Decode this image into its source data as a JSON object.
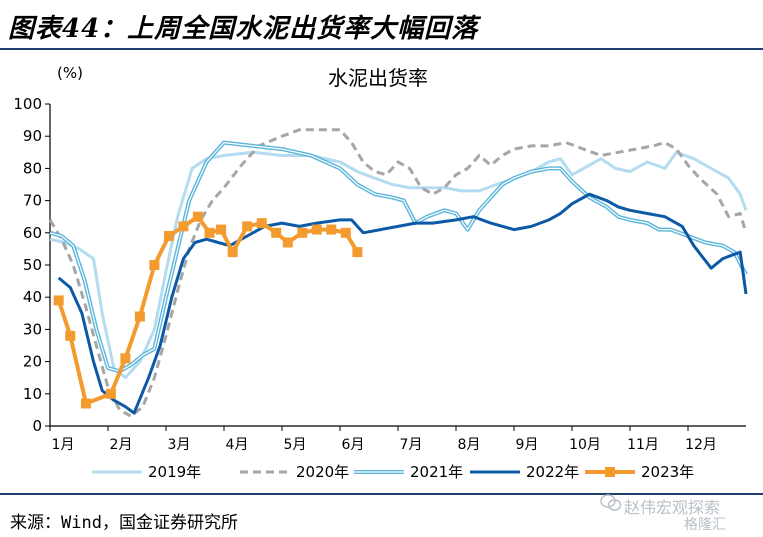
{
  "figure": {
    "title": "图表44：上周全国水泥出货率大幅回落",
    "source": "来源：Wind，国金证券研究所",
    "watermark": {
      "name": "赵伟宏观探索",
      "sub": "格隆汇",
      "icon": "wechat-icon"
    }
  },
  "chart_data": {
    "type": "line",
    "title": "水泥出货率",
    "ylabel": "(%)",
    "ylim": [
      0,
      100
    ],
    "yticks": [
      0,
      10,
      20,
      30,
      40,
      50,
      60,
      70,
      80,
      90,
      100
    ],
    "xlim": [
      1,
      13
    ],
    "xticks": [
      {
        "x": 1,
        "label": "1月"
      },
      {
        "x": 2,
        "label": "2月"
      },
      {
        "x": 3,
        "label": "3月"
      },
      {
        "x": 4,
        "label": "4月"
      },
      {
        "x": 5,
        "label": "5月"
      },
      {
        "x": 6,
        "label": "6月"
      },
      {
        "x": 7,
        "label": "7月"
      },
      {
        "x": 8,
        "label": "8月"
      },
      {
        "x": 9,
        "label": "9月"
      },
      {
        "x": 10,
        "label": "10月"
      },
      {
        "x": 11,
        "label": "11月"
      },
      {
        "x": 12,
        "label": "12月"
      }
    ],
    "grid": false,
    "legend_position": "bottom",
    "series": [
      {
        "name": "2019年",
        "color": "#b4dcf0",
        "style": "solid",
        "width": 3,
        "marker": "none",
        "points": [
          [
            1.0,
            58
          ],
          [
            1.25,
            57
          ],
          [
            1.5,
            55
          ],
          [
            1.75,
            52
          ],
          [
            1.9,
            35
          ],
          [
            2.1,
            18
          ],
          [
            2.3,
            15
          ],
          [
            2.55,
            20
          ],
          [
            2.8,
            30
          ],
          [
            3.0,
            48
          ],
          [
            3.2,
            65
          ],
          [
            3.45,
            80
          ],
          [
            3.7,
            83
          ],
          [
            4.0,
            84
          ],
          [
            4.5,
            85
          ],
          [
            5.0,
            84
          ],
          [
            5.5,
            84
          ],
          [
            6.0,
            82
          ],
          [
            6.3,
            79
          ],
          [
            6.6,
            77
          ],
          [
            6.9,
            75
          ],
          [
            7.2,
            74
          ],
          [
            7.5,
            74
          ],
          [
            7.8,
            74
          ],
          [
            8.1,
            73
          ],
          [
            8.4,
            73
          ],
          [
            8.7,
            75
          ],
          [
            9.0,
            77
          ],
          [
            9.3,
            79
          ],
          [
            9.6,
            82
          ],
          [
            9.8,
            83
          ],
          [
            10.0,
            78
          ],
          [
            10.3,
            81
          ],
          [
            10.5,
            83
          ],
          [
            10.75,
            80
          ],
          [
            11.0,
            79
          ],
          [
            11.3,
            82
          ],
          [
            11.6,
            80
          ],
          [
            11.8,
            85
          ],
          [
            12.1,
            83
          ],
          [
            12.4,
            80
          ],
          [
            12.7,
            77
          ],
          [
            12.9,
            72
          ],
          [
            13.0,
            67
          ]
        ]
      },
      {
        "name": "2020年",
        "color": "#a6a6a6",
        "style": "dashed",
        "width": 3,
        "marker": "none",
        "points": [
          [
            1.0,
            64
          ],
          [
            1.2,
            58
          ],
          [
            1.4,
            50
          ],
          [
            1.6,
            38
          ],
          [
            1.8,
            25
          ],
          [
            2.0,
            12
          ],
          [
            2.2,
            5
          ],
          [
            2.4,
            3
          ],
          [
            2.6,
            6
          ],
          [
            2.8,
            15
          ],
          [
            3.0,
            28
          ],
          [
            3.2,
            42
          ],
          [
            3.4,
            55
          ],
          [
            3.6,
            64
          ],
          [
            3.8,
            70
          ],
          [
            4.0,
            74
          ],
          [
            4.3,
            81
          ],
          [
            4.6,
            87
          ],
          [
            5.0,
            90
          ],
          [
            5.3,
            92
          ],
          [
            5.6,
            92
          ],
          [
            6.0,
            92
          ],
          [
            6.2,
            88
          ],
          [
            6.4,
            82
          ],
          [
            6.6,
            79
          ],
          [
            6.8,
            78
          ],
          [
            7.0,
            82
          ],
          [
            7.2,
            80
          ],
          [
            7.4,
            74
          ],
          [
            7.6,
            72
          ],
          [
            7.8,
            74
          ],
          [
            8.0,
            78
          ],
          [
            8.2,
            80
          ],
          [
            8.4,
            84
          ],
          [
            8.6,
            81
          ],
          [
            8.8,
            84
          ],
          [
            9.0,
            86
          ],
          [
            9.3,
            87
          ],
          [
            9.6,
            87
          ],
          [
            9.9,
            88
          ],
          [
            10.2,
            86
          ],
          [
            10.5,
            84
          ],
          [
            10.8,
            85
          ],
          [
            11.1,
            86
          ],
          [
            11.4,
            87
          ],
          [
            11.6,
            88
          ],
          [
            11.8,
            86
          ],
          [
            12.0,
            81
          ],
          [
            12.2,
            77
          ],
          [
            12.5,
            72
          ],
          [
            12.7,
            65
          ],
          [
            12.9,
            66
          ],
          [
            13.0,
            60
          ]
        ]
      },
      {
        "name": "2021年",
        "color": "#5bb5db",
        "style": "double",
        "width": 4,
        "marker": "none",
        "points": [
          [
            1.0,
            60
          ],
          [
            1.2,
            59
          ],
          [
            1.4,
            56
          ],
          [
            1.6,
            45
          ],
          [
            1.8,
            30
          ],
          [
            2.0,
            18
          ],
          [
            2.2,
            17
          ],
          [
            2.4,
            19
          ],
          [
            2.6,
            22
          ],
          [
            2.8,
            24
          ],
          [
            3.0,
            40
          ],
          [
            3.2,
            55
          ],
          [
            3.4,
            70
          ],
          [
            3.7,
            82
          ],
          [
            4.0,
            88
          ],
          [
            4.5,
            87
          ],
          [
            5.0,
            86
          ],
          [
            5.5,
            84
          ],
          [
            6.0,
            80
          ],
          [
            6.3,
            75
          ],
          [
            6.6,
            72
          ],
          [
            6.9,
            71
          ],
          [
            7.1,
            70
          ],
          [
            7.3,
            63
          ],
          [
            7.5,
            65
          ],
          [
            7.8,
            67
          ],
          [
            8.0,
            66
          ],
          [
            8.2,
            61
          ],
          [
            8.4,
            67
          ],
          [
            8.6,
            71
          ],
          [
            8.8,
            75
          ],
          [
            9.0,
            77
          ],
          [
            9.3,
            79
          ],
          [
            9.6,
            80
          ],
          [
            9.8,
            80
          ],
          [
            10.0,
            76
          ],
          [
            10.3,
            71
          ],
          [
            10.6,
            68
          ],
          [
            10.8,
            65
          ],
          [
            11.0,
            64
          ],
          [
            11.3,
            63
          ],
          [
            11.5,
            61
          ],
          [
            11.7,
            61
          ],
          [
            12.0,
            59
          ],
          [
            12.3,
            57
          ],
          [
            12.6,
            56
          ],
          [
            12.8,
            54
          ],
          [
            13.0,
            47
          ]
        ]
      },
      {
        "name": "2022年",
        "color": "#0c5aa6",
        "style": "solid",
        "width": 3,
        "marker": "none",
        "points": [
          [
            1.15,
            46
          ],
          [
            1.35,
            43
          ],
          [
            1.55,
            35
          ],
          [
            1.75,
            20
          ],
          [
            1.9,
            11
          ],
          [
            2.1,
            8
          ],
          [
            2.3,
            6
          ],
          [
            2.45,
            4
          ],
          [
            2.7,
            15
          ],
          [
            2.9,
            25
          ],
          [
            3.1,
            40
          ],
          [
            3.3,
            52
          ],
          [
            3.5,
            57
          ],
          [
            3.7,
            58
          ],
          [
            3.9,
            57
          ],
          [
            4.1,
            56
          ],
          [
            4.4,
            59
          ],
          [
            4.7,
            62
          ],
          [
            5.0,
            63
          ],
          [
            5.3,
            62
          ],
          [
            5.6,
            63
          ],
          [
            6.0,
            64
          ],
          [
            6.2,
            64
          ],
          [
            6.4,
            60
          ],
          [
            6.7,
            61
          ],
          [
            7.0,
            62
          ],
          [
            7.3,
            63
          ],
          [
            7.6,
            63
          ],
          [
            8.0,
            64
          ],
          [
            8.3,
            65
          ],
          [
            8.6,
            63
          ],
          [
            9.0,
            61
          ],
          [
            9.3,
            62
          ],
          [
            9.6,
            64
          ],
          [
            9.8,
            66
          ],
          [
            10.0,
            69
          ],
          [
            10.3,
            72
          ],
          [
            10.6,
            70
          ],
          [
            10.8,
            68
          ],
          [
            11.0,
            67
          ],
          [
            11.3,
            66
          ],
          [
            11.6,
            65
          ],
          [
            11.9,
            62
          ],
          [
            12.1,
            56
          ],
          [
            12.4,
            49
          ],
          [
            12.6,
            52
          ],
          [
            12.9,
            54
          ],
          [
            13.0,
            41
          ]
        ]
      },
      {
        "name": "2023年",
        "color": "#f39b2f",
        "style": "solid",
        "width": 4,
        "marker": "square",
        "points": [
          [
            1.15,
            39
          ],
          [
            1.35,
            28
          ],
          [
            1.62,
            7
          ],
          [
            2.05,
            10
          ],
          [
            2.3,
            21
          ],
          [
            2.55,
            34
          ],
          [
            2.8,
            50
          ],
          [
            3.05,
            59
          ],
          [
            3.3,
            62
          ],
          [
            3.55,
            65
          ],
          [
            3.75,
            60
          ],
          [
            3.95,
            61
          ],
          [
            4.15,
            54
          ],
          [
            4.4,
            62
          ],
          [
            4.65,
            63
          ],
          [
            4.9,
            60
          ],
          [
            5.1,
            57
          ],
          [
            5.35,
            60
          ],
          [
            5.6,
            61
          ],
          [
            5.85,
            61
          ],
          [
            6.1,
            60
          ],
          [
            6.3,
            54
          ]
        ]
      }
    ]
  }
}
